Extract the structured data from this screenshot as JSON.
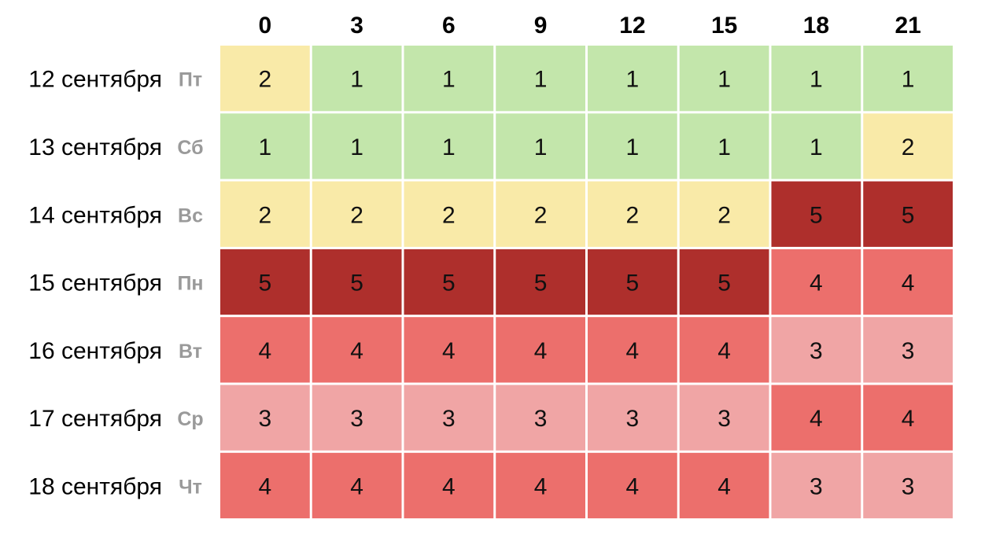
{
  "chart_data": {
    "type": "heatmap",
    "title": "",
    "x": [
      "0",
      "3",
      "6",
      "9",
      "12",
      "15",
      "18",
      "21"
    ],
    "rows": [
      {
        "date": "12 сентября",
        "weekday": "Пт",
        "values": [
          2,
          1,
          1,
          1,
          1,
          1,
          1,
          1
        ]
      },
      {
        "date": "13 сентября",
        "weekday": "Сб",
        "values": [
          1,
          1,
          1,
          1,
          1,
          1,
          1,
          2
        ]
      },
      {
        "date": "14 сентября",
        "weekday": "Вс",
        "values": [
          2,
          2,
          2,
          2,
          2,
          2,
          5,
          5
        ]
      },
      {
        "date": "15 сентября",
        "weekday": "Пн",
        "values": [
          5,
          5,
          5,
          5,
          5,
          5,
          4,
          4
        ]
      },
      {
        "date": "16 сентября",
        "weekday": "Вт",
        "values": [
          4,
          4,
          4,
          4,
          4,
          4,
          3,
          3
        ]
      },
      {
        "date": "17 сентября",
        "weekday": "Ср",
        "values": [
          3,
          3,
          3,
          3,
          3,
          3,
          4,
          4
        ]
      },
      {
        "date": "18 сентября",
        "weekday": "Чт",
        "values": [
          4,
          4,
          4,
          4,
          4,
          4,
          3,
          3
        ]
      }
    ],
    "color_scale": {
      "1": "#c3e6ab",
      "2": "#f9eaa8",
      "3": "#f0a5a5",
      "4": "#ec6f6c",
      "5": "#ae2f2c"
    },
    "grid": true,
    "legend": "none"
  }
}
